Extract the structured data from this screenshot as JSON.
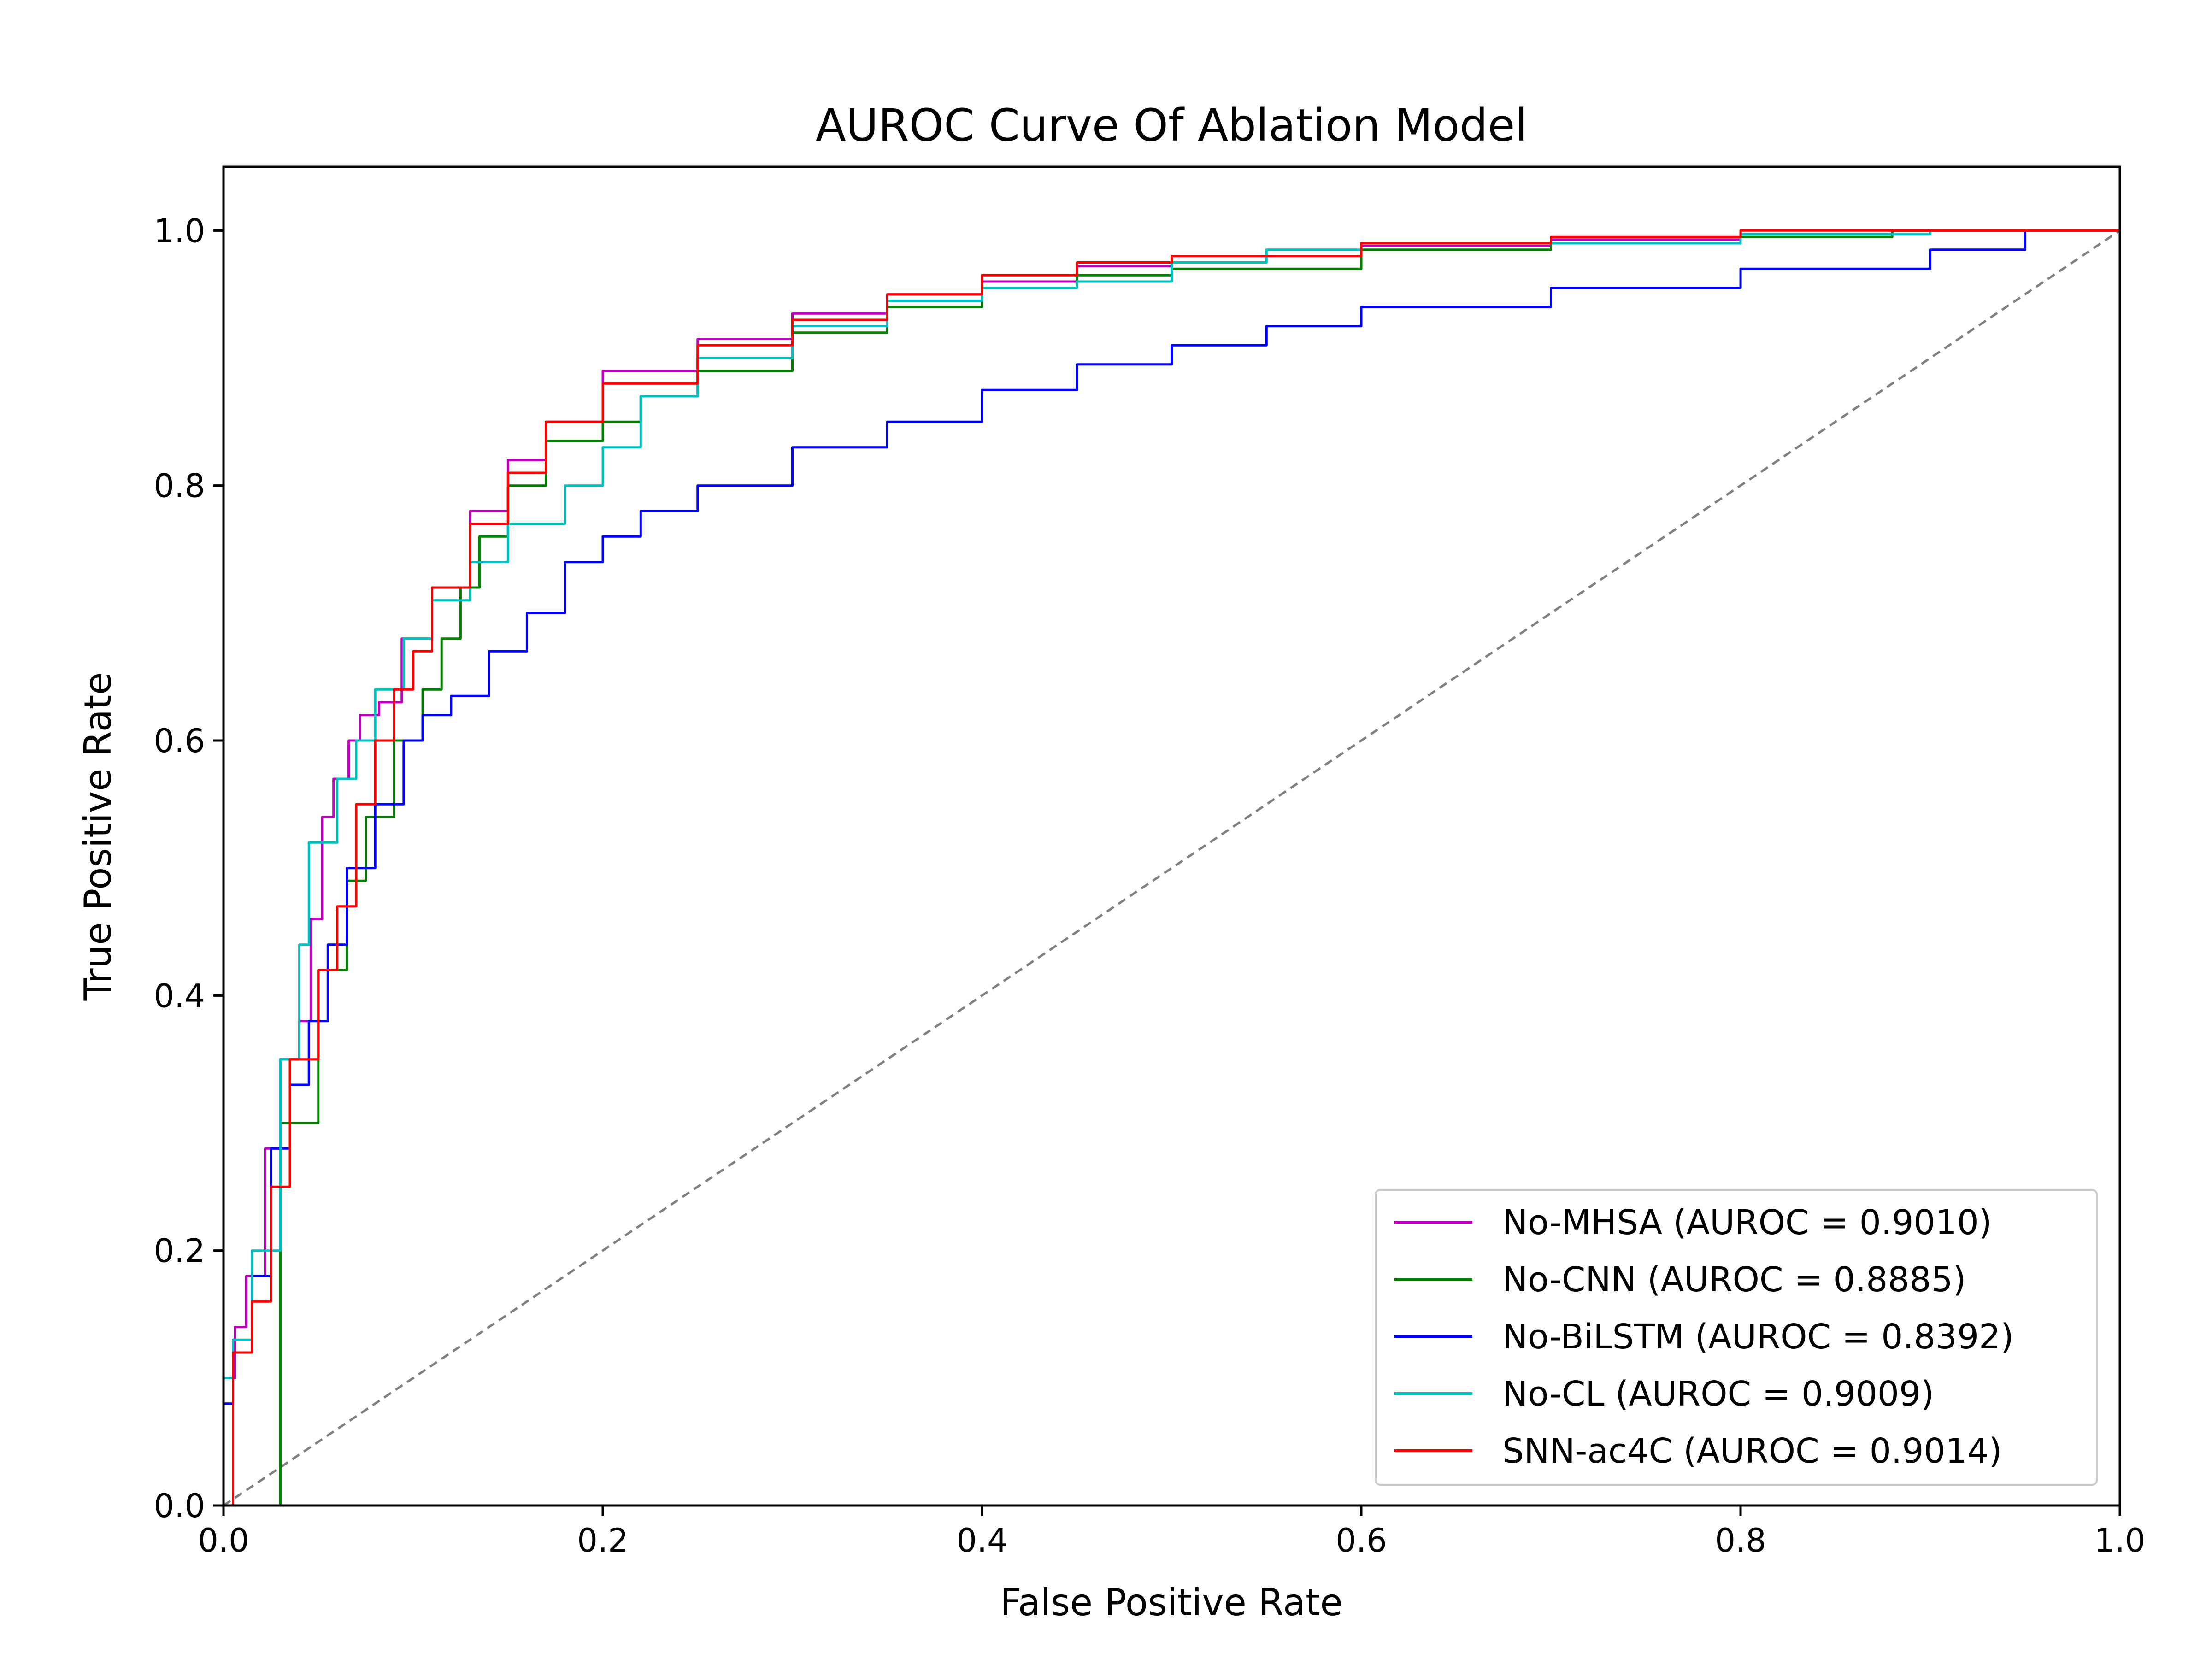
{
  "chart_data": {
    "type": "line",
    "title": "AUROC Curve Of Ablation Model",
    "xlabel": "False Positive Rate",
    "ylabel": "True Positive Rate",
    "xlim": [
      0.0,
      1.0
    ],
    "ylim": [
      0.0,
      1.05
    ],
    "xticks": [
      0.0,
      0.2,
      0.4,
      0.6,
      0.8,
      1.0
    ],
    "yticks": [
      0.0,
      0.2,
      0.4,
      0.6,
      0.8,
      1.0
    ],
    "xtick_labels": [
      "0.0",
      "0.2",
      "0.4",
      "0.6",
      "0.8",
      "1.0"
    ],
    "ytick_labels": [
      "0.0",
      "0.2",
      "0.4",
      "0.6",
      "0.8",
      "1.0"
    ],
    "grid": false,
    "legend_position": "lower-right",
    "diagonal": {
      "x": [
        0.0,
        1.0
      ],
      "y": [
        0.0,
        1.0
      ],
      "color": "#808080",
      "style": "dashed"
    },
    "series": [
      {
        "name": "No-MHSA (AUROC = 0.9010)",
        "color": "#bf00bf",
        "x": [
          0.0,
          0.0,
          0.006,
          0.012,
          0.022,
          0.03,
          0.04,
          0.046,
          0.052,
          0.058,
          0.066,
          0.072,
          0.082,
          0.094,
          0.11,
          0.13,
          0.15,
          0.17,
          0.2,
          0.25,
          0.3,
          0.35,
          0.4,
          0.45,
          0.5,
          0.6,
          0.7,
          0.8,
          0.88,
          1.0
        ],
        "y": [
          0.0,
          0.1,
          0.14,
          0.18,
          0.28,
          0.35,
          0.38,
          0.46,
          0.54,
          0.57,
          0.6,
          0.62,
          0.63,
          0.68,
          0.72,
          0.78,
          0.82,
          0.85,
          0.89,
          0.915,
          0.935,
          0.95,
          0.96,
          0.972,
          0.98,
          0.988,
          0.993,
          0.997,
          1.0,
          1.0
        ]
      },
      {
        "name": "No-CNN (AUROC = 0.8885)",
        "color": "#008000",
        "x": [
          0.0,
          0.03,
          0.05,
          0.065,
          0.075,
          0.09,
          0.105,
          0.115,
          0.125,
          0.135,
          0.15,
          0.17,
          0.2,
          0.22,
          0.25,
          0.3,
          0.35,
          0.4,
          0.45,
          0.5,
          0.6,
          0.7,
          0.8,
          0.88,
          1.0
        ],
        "y": [
          0.0,
          0.3,
          0.42,
          0.49,
          0.54,
          0.6,
          0.64,
          0.68,
          0.72,
          0.76,
          0.8,
          0.835,
          0.85,
          0.87,
          0.89,
          0.92,
          0.94,
          0.955,
          0.965,
          0.97,
          0.985,
          0.99,
          0.995,
          1.0,
          1.0
        ]
      },
      {
        "name": "No-BiLSTM (AUROC = 0.8392)",
        "color": "#0000ff",
        "x": [
          0.0,
          0.0,
          0.005,
          0.015,
          0.025,
          0.035,
          0.045,
          0.055,
          0.065,
          0.08,
          0.095,
          0.105,
          0.12,
          0.14,
          0.16,
          0.18,
          0.2,
          0.22,
          0.25,
          0.3,
          0.35,
          0.4,
          0.45,
          0.5,
          0.55,
          0.6,
          0.7,
          0.8,
          0.9,
          0.95
        ],
        "y": [
          0.0,
          0.08,
          0.12,
          0.18,
          0.28,
          0.33,
          0.38,
          0.44,
          0.5,
          0.55,
          0.6,
          0.62,
          0.635,
          0.67,
          0.7,
          0.74,
          0.76,
          0.78,
          0.8,
          0.83,
          0.85,
          0.875,
          0.895,
          0.91,
          0.925,
          0.94,
          0.955,
          0.97,
          0.985,
          1.0
        ]
      },
      {
        "name": "No-CL (AUROC = 0.9009)",
        "color": "#00bfbf",
        "x": [
          0.0,
          0.0,
          0.005,
          0.015,
          0.03,
          0.04,
          0.045,
          0.06,
          0.07,
          0.08,
          0.095,
          0.11,
          0.13,
          0.15,
          0.18,
          0.2,
          0.22,
          0.25,
          0.3,
          0.35,
          0.4,
          0.45,
          0.5,
          0.55,
          0.6,
          0.7,
          0.8,
          0.9,
          1.0
        ],
        "y": [
          0.0,
          0.1,
          0.13,
          0.2,
          0.35,
          0.44,
          0.52,
          0.57,
          0.6,
          0.64,
          0.68,
          0.71,
          0.74,
          0.77,
          0.8,
          0.83,
          0.87,
          0.9,
          0.925,
          0.945,
          0.955,
          0.96,
          0.975,
          0.985,
          0.99,
          0.99,
          0.997,
          1.0,
          1.0
        ]
      },
      {
        "name": "SNN-ac4C (AUROC = 0.9014)",
        "color": "#ff0000",
        "x": [
          0.0,
          0.005,
          0.015,
          0.025,
          0.035,
          0.05,
          0.06,
          0.07,
          0.08,
          0.09,
          0.1,
          0.11,
          0.13,
          0.15,
          0.17,
          0.2,
          0.25,
          0.3,
          0.35,
          0.4,
          0.45,
          0.5,
          0.6,
          0.7,
          0.8,
          0.9,
          1.0
        ],
        "y": [
          0.0,
          0.12,
          0.16,
          0.25,
          0.35,
          0.42,
          0.47,
          0.55,
          0.6,
          0.64,
          0.67,
          0.72,
          0.77,
          0.81,
          0.85,
          0.88,
          0.91,
          0.93,
          0.95,
          0.965,
          0.975,
          0.98,
          0.99,
          0.995,
          1.0,
          1.0,
          1.0
        ]
      }
    ]
  }
}
